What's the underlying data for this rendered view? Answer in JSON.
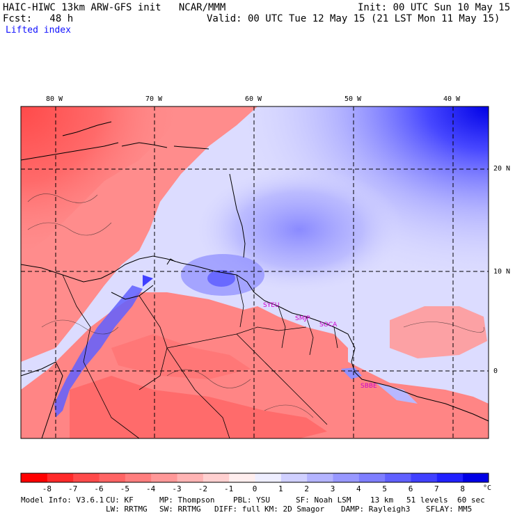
{
  "header": {
    "model_title": "HAIC-HIWC 13km ARW-GFS init   NCAR/MMM",
    "init_time": "Init: 00 UTC Sun 10 May 15",
    "forecast_label": "Fcst:   48 h",
    "valid_time": "Valid: 00 UTC Tue 12 May 15 (21 LST Mon 11 May 15)",
    "field_name": "Lifted index"
  },
  "map": {
    "lon_labels": [
      "80 W",
      "70 W",
      "60 W",
      "50 W",
      "40 W"
    ],
    "lat_labels": [
      "20 N",
      "10 N",
      "0"
    ],
    "stations": [
      "SYEU",
      "SMJP",
      "SOCA",
      "SBBE"
    ]
  },
  "colorbar": {
    "unit": "°C",
    "ticks": [
      "-8",
      "-7",
      "-6",
      "-5",
      "-4",
      "-3",
      "-2",
      "-1",
      "0",
      "1",
      "2",
      "3",
      "4",
      "5",
      "6",
      "7",
      "8"
    ],
    "colors": [
      "#ff0000",
      "#ff2a2a",
      "#ff4a4a",
      "#ff6464",
      "#ff7e7e",
      "#ff9898",
      "#ffb4b4",
      "#ffd0d0",
      "#ffeeee",
      "#eeeeff",
      "#d0d0ff",
      "#b4b4ff",
      "#9898ff",
      "#7e7eff",
      "#6060ff",
      "#4040ff",
      "#2020ff",
      "#0000e6"
    ]
  },
  "footer": {
    "line1": [
      "Model Info: V3.6.1",
      "CU: KF",
      "MP: Thompson",
      "PBL: YSU",
      "SF: Noah LSM",
      "13 km",
      "51 levels",
      "60 sec"
    ],
    "line2": [
      "LW: RRTMG",
      "SW: RRTMG",
      "DIFF: full",
      "KM: 2D Smagor",
      "DAMP: Rayleigh3",
      "SFLAY: MM5"
    ]
  }
}
